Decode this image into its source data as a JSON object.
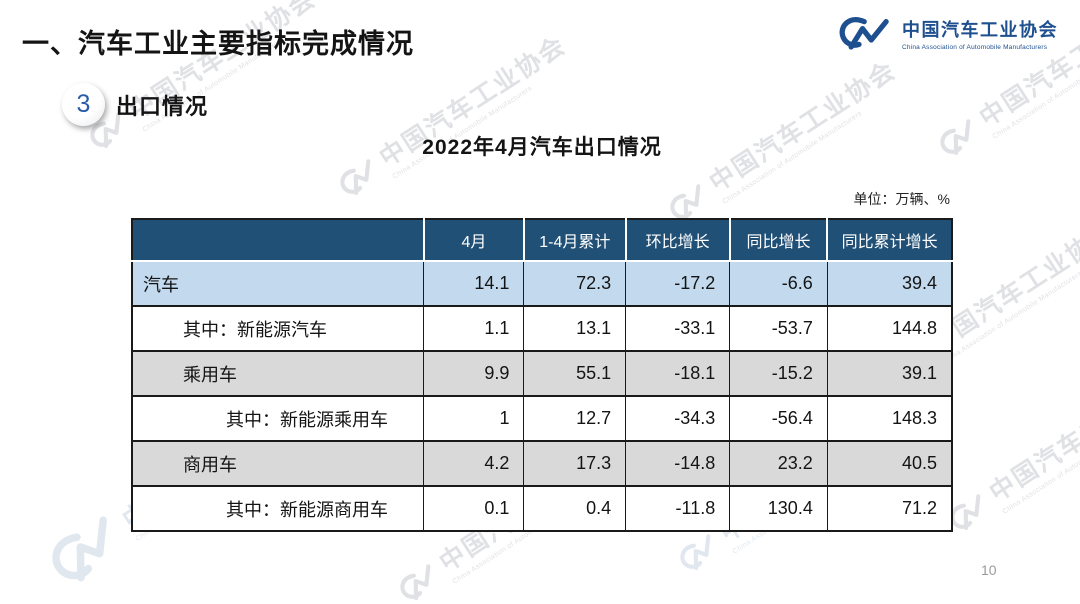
{
  "slide": {
    "title": "一、汽车工业主要指标完成情况",
    "section_number": "3",
    "section_label": "出口情况",
    "page_number": "10"
  },
  "logo": {
    "name_cn": "中国汽车工业协会",
    "name_en": "China Association of Automobile Manufacturers"
  },
  "watermark": {
    "text_cn": "中国汽车工业协会",
    "text_en": "China Association of Automobile Manufacturers"
  },
  "chart_data": {
    "type": "table",
    "title": "2022年4月汽车出口情况",
    "unit_note": "单位：万辆、%",
    "columns": [
      "",
      "4月",
      "1-4月累计",
      "环比增长",
      "同比增长",
      "同比累计增长"
    ],
    "rows": [
      {
        "label": "汽车",
        "indent": 0,
        "style": "blue",
        "values": [
          "14.1",
          "72.3",
          "-17.2",
          "-6.6",
          "39.4"
        ]
      },
      {
        "label": "其中：新能源汽车",
        "indent": 1,
        "style": "white",
        "values": [
          "1.1",
          "13.1",
          "-33.1",
          "-53.7",
          "144.8"
        ]
      },
      {
        "label": "乘用车",
        "indent": 1,
        "style": "gray",
        "values": [
          "9.9",
          "55.1",
          "-18.1",
          "-15.2",
          "39.1"
        ]
      },
      {
        "label": "其中：新能源乘用车",
        "indent": 2,
        "style": "white",
        "values": [
          "1",
          "12.7",
          "-34.3",
          "-56.4",
          "148.3"
        ]
      },
      {
        "label": "商用车",
        "indent": 1,
        "style": "gray",
        "values": [
          "4.2",
          "17.3",
          "-14.8",
          "23.2",
          "40.5"
        ]
      },
      {
        "label": "其中：新能源商用车",
        "indent": 2,
        "style": "white",
        "values": [
          "0.1",
          "0.4",
          "-11.8",
          "130.4",
          "71.2"
        ]
      }
    ]
  },
  "colors": {
    "header_bg": "#215077",
    "row_blue": "#C3DAEE",
    "row_gray": "#D9D9D9",
    "brand_blue": "#1E4F8F",
    "border_dark": "#1A1A1A",
    "watermark_gray": "#C6C9CF"
  }
}
